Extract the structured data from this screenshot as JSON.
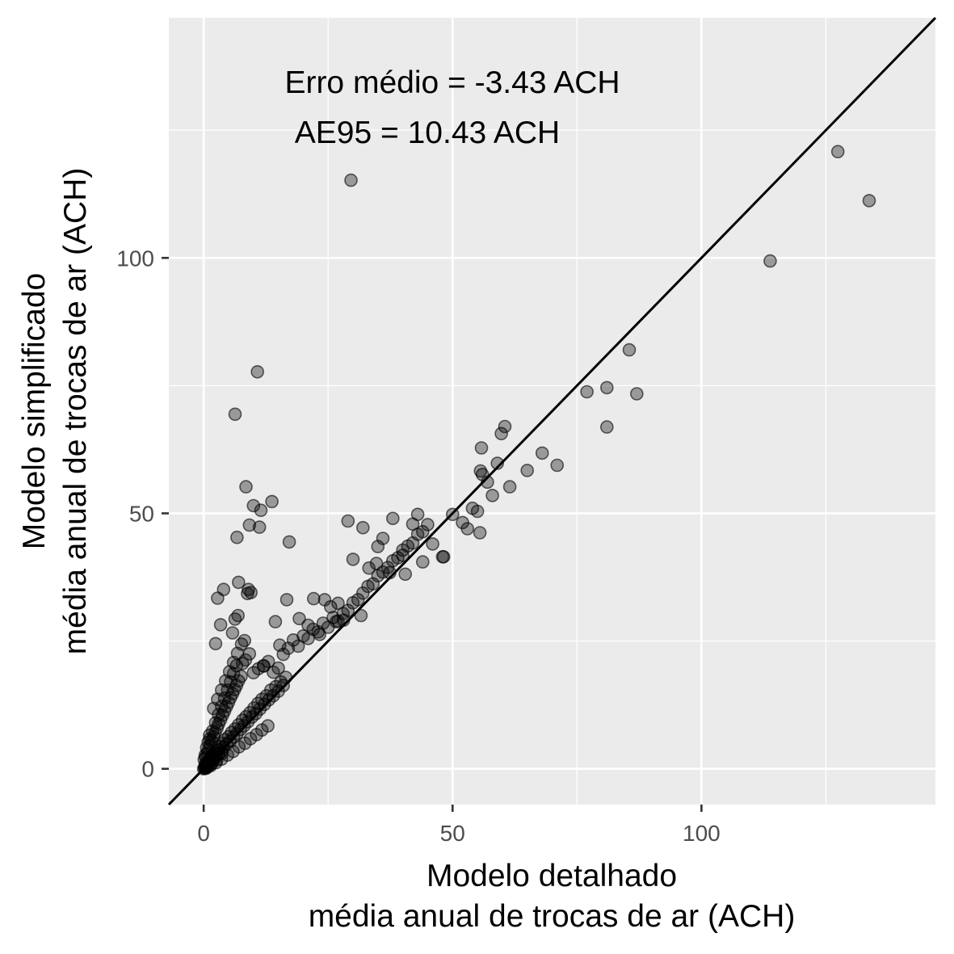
{
  "chart_data": {
    "type": "scatter",
    "title": "",
    "xlabel_lines": [
      "Modelo detalhado",
      "média anual de trocas de ar (ACH)"
    ],
    "ylabel_lines": [
      "Modelo simplificado",
      "média anual de trocas de ar (ACH)"
    ],
    "xlim": [
      -7,
      147
    ],
    "ylim": [
      -7,
      147
    ],
    "x_ticks": [
      0,
      50,
      100
    ],
    "y_ticks": [
      0,
      50,
      100
    ],
    "x_tick_labels": [
      "0",
      "50",
      "100"
    ],
    "y_tick_labels": [
      "0",
      "50",
      "100"
    ],
    "grid": true,
    "legend": "none",
    "reference_line": {
      "type": "identity",
      "slope": 1,
      "intercept": 0
    },
    "annotations": [
      "Erro médio = -3.43 ACH",
      "AE95 = 10.43 ACH"
    ],
    "colors": {
      "panel_background": "#ebebeb",
      "grid_major": "#ffffff",
      "point_fill": "rgba(0,0,0,0.35)",
      "point_stroke": "rgba(0,0,0,0.6)",
      "reference_line": "#000000",
      "tick_label": "#4d4d4d"
    },
    "series": [
      {
        "points": [
          [
            0.2,
            0.3
          ],
          [
            0.3,
            0.8
          ],
          [
            0.5,
            0.4
          ],
          [
            0.6,
            1.2
          ],
          [
            0.8,
            0.9
          ],
          [
            1.0,
            1.5
          ],
          [
            1.1,
            0.7
          ],
          [
            1.3,
            2.0
          ],
          [
            1.5,
            1.4
          ],
          [
            1.7,
            2.6
          ],
          [
            2.0,
            1.8
          ],
          [
            2.2,
            3.1
          ],
          [
            2.4,
            2.3
          ],
          [
            2.7,
            3.6
          ],
          [
            3.0,
            2.9
          ],
          [
            3.2,
            4.4
          ],
          [
            3.5,
            3.3
          ],
          [
            3.8,
            5.0
          ],
          [
            4.0,
            4.2
          ],
          [
            4.3,
            5.7
          ],
          [
            4.6,
            4.8
          ],
          [
            5.0,
            6.3
          ],
          [
            5.3,
            5.4
          ],
          [
            5.6,
            7.1
          ],
          [
            6.0,
            6.2
          ],
          [
            6.3,
            7.8
          ],
          [
            6.7,
            6.9
          ],
          [
            7.0,
            8.6
          ],
          [
            7.4,
            7.7
          ],
          [
            7.8,
            9.5
          ],
          [
            8.1,
            8.4
          ],
          [
            8.5,
            10.2
          ],
          [
            8.9,
            9.2
          ],
          [
            9.3,
            11.0
          ],
          [
            9.7,
            10.1
          ],
          [
            10.1,
            11.9
          ],
          [
            10.5,
            10.8
          ],
          [
            10.9,
            12.8
          ],
          [
            11.3,
            11.7
          ],
          [
            11.7,
            13.6
          ],
          [
            12.2,
            12.6
          ],
          [
            12.6,
            14.3
          ],
          [
            13.1,
            13.5
          ],
          [
            13.5,
            15.4
          ],
          [
            14.0,
            14.3
          ],
          [
            14.5,
            16.1
          ],
          [
            15.0,
            15.2
          ],
          [
            15.5,
            17.0
          ],
          [
            16.0,
            16.3
          ],
          [
            16.5,
            17.9
          ],
          [
            0.4,
            2.2
          ],
          [
            0.7,
            3.0
          ],
          [
            1.0,
            3.8
          ],
          [
            1.3,
            4.6
          ],
          [
            1.6,
            5.5
          ],
          [
            2.0,
            6.3
          ],
          [
            2.3,
            7.1
          ],
          [
            2.7,
            8.0
          ],
          [
            3.0,
            8.8
          ],
          [
            3.4,
            9.6
          ],
          [
            3.8,
            10.5
          ],
          [
            4.2,
            11.3
          ],
          [
            4.6,
            12.2
          ],
          [
            5.0,
            13.0
          ],
          [
            5.4,
            13.9
          ],
          [
            5.8,
            14.7
          ],
          [
            6.2,
            15.5
          ],
          [
            6.6,
            16.3
          ],
          [
            7.0,
            17.2
          ],
          [
            7.5,
            18.1
          ],
          [
            1.2,
            5.8
          ],
          [
            1.8,
            7.4
          ],
          [
            2.4,
            9.0
          ],
          [
            3.0,
            10.6
          ],
          [
            3.6,
            12.2
          ],
          [
            4.2,
            13.8
          ],
          [
            4.8,
            15.4
          ],
          [
            5.4,
            17.0
          ],
          [
            6.0,
            18.6
          ],
          [
            6.6,
            20.2
          ],
          [
            2.0,
            11.8
          ],
          [
            2.8,
            13.6
          ],
          [
            3.6,
            15.4
          ],
          [
            4.4,
            17.2
          ],
          [
            5.2,
            19.0
          ],
          [
            6.0,
            20.8
          ],
          [
            6.8,
            22.6
          ],
          [
            7.6,
            24.4
          ],
          [
            8.4,
            21.3
          ],
          [
            9.2,
            22.5
          ],
          [
            10.0,
            18.8
          ],
          [
            11.0,
            19.6
          ],
          [
            12.0,
            20.2
          ],
          [
            13.0,
            21.0
          ],
          [
            14.0,
            18.9
          ],
          [
            15.0,
            19.7
          ],
          [
            16.0,
            22.4
          ],
          [
            17.0,
            23.6
          ],
          [
            18.0,
            25.2
          ],
          [
            19.0,
            24.0
          ],
          [
            20.0,
            26.0
          ],
          [
            21.0,
            25.5
          ],
          [
            22.0,
            27.3
          ],
          [
            23.0,
            26.8
          ],
          [
            24.0,
            28.5
          ],
          [
            25.0,
            27.7
          ],
          [
            26.0,
            29.6
          ],
          [
            27.0,
            28.9
          ],
          [
            28.0,
            30.4
          ],
          [
            29.0,
            31.0
          ],
          [
            30.0,
            32.5
          ],
          [
            31.0,
            33.1
          ],
          [
            32.0,
            34.4
          ],
          [
            33.0,
            35.7
          ],
          [
            34.0,
            36.2
          ],
          [
            35.0,
            37.8
          ],
          [
            36.0,
            38.5
          ],
          [
            37.0,
            39.4
          ],
          [
            38.0,
            40.7
          ],
          [
            39.0,
            41.3
          ],
          [
            40.0,
            42.8
          ],
          [
            41.0,
            43.6
          ],
          [
            42.0,
            44.2
          ],
          [
            43.0,
            45.9
          ],
          [
            44.0,
            46.4
          ],
          [
            45.0,
            47.8
          ],
          [
            29.0,
            48.5
          ],
          [
            32.0,
            47.2
          ],
          [
            30.0,
            41.0
          ],
          [
            35.0,
            43.5
          ],
          [
            36.0,
            45.1
          ],
          [
            38.0,
            49.0
          ],
          [
            40.0,
            41.8
          ],
          [
            42.0,
            47.9
          ],
          [
            43.0,
            49.8
          ],
          [
            46.0,
            44.0
          ],
          [
            48.0,
            41.5
          ],
          [
            50.0,
            49.8
          ],
          [
            52.0,
            48.2
          ],
          [
            53.0,
            47.0
          ],
          [
            54.0,
            51.0
          ],
          [
            55.0,
            50.4
          ],
          [
            55.5,
            46.2
          ],
          [
            56.0,
            57.6
          ],
          [
            57.0,
            56.1
          ],
          [
            58.0,
            53.5
          ],
          [
            59.0,
            59.8
          ],
          [
            59.8,
            65.6
          ],
          [
            60.5,
            67.0
          ],
          [
            61.5,
            55.2
          ],
          [
            55.6,
            58.3
          ],
          [
            55.8,
            62.8
          ],
          [
            65.0,
            58.4
          ],
          [
            68.0,
            61.8
          ],
          [
            71.0,
            59.4
          ],
          [
            77.0,
            73.8
          ],
          [
            81.0,
            74.6
          ],
          [
            81.0,
            66.9
          ],
          [
            85.5,
            82.0
          ],
          [
            87.0,
            73.4
          ],
          [
            113.8,
            99.4
          ],
          [
            127.4,
            120.8
          ],
          [
            133.7,
            111.2
          ],
          [
            29.6,
            115.2
          ],
          [
            6.3,
            69.4
          ],
          [
            10.8,
            77.7
          ],
          [
            8.5,
            55.2
          ],
          [
            10.0,
            51.5
          ],
          [
            11.5,
            50.6
          ],
          [
            13.7,
            52.3
          ],
          [
            9.2,
            47.7
          ],
          [
            11.2,
            47.3
          ],
          [
            17.2,
            44.4
          ],
          [
            6.7,
            45.3
          ],
          [
            7.0,
            36.5
          ],
          [
            9.0,
            35.1
          ],
          [
            8.8,
            34.3
          ],
          [
            9.5,
            34.5
          ],
          [
            2.8,
            33.4
          ],
          [
            4.0,
            35.1
          ],
          [
            6.3,
            29.3
          ],
          [
            6.9,
            30.0
          ],
          [
            5.8,
            26.6
          ],
          [
            3.4,
            28.2
          ],
          [
            2.4,
            24.5
          ],
          [
            8.2,
            25.1
          ],
          [
            7.8,
            20.6
          ],
          [
            12.1,
            20.1
          ],
          [
            16.7,
            33.1
          ],
          [
            22.1,
            33.3
          ],
          [
            24.3,
            33.1
          ],
          [
            27.0,
            32.4
          ],
          [
            14.4,
            28.8
          ],
          [
            15.3,
            24.2
          ],
          [
            19.2,
            29.4
          ],
          [
            21.0,
            28.1
          ],
          [
            23.3,
            26.3
          ],
          [
            25.5,
            31.7
          ],
          [
            26.6,
            28.8
          ],
          [
            28.1,
            29.1
          ],
          [
            31.6,
            30.0
          ],
          [
            33.2,
            39.3
          ],
          [
            34.7,
            40.2
          ],
          [
            37.4,
            38.4
          ],
          [
            40.5,
            38.1
          ],
          [
            44.0,
            40.5
          ],
          [
            48.2,
            41.5
          ],
          [
            0.5,
            0.1
          ],
          [
            1.4,
            0.6
          ],
          [
            2.5,
            1.2
          ],
          [
            3.6,
            1.9
          ],
          [
            4.8,
            2.7
          ],
          [
            5.9,
            3.4
          ],
          [
            7.1,
            4.3
          ],
          [
            8.3,
            5.0
          ],
          [
            9.4,
            5.9
          ],
          [
            10.6,
            6.7
          ],
          [
            11.7,
            7.6
          ],
          [
            12.9,
            8.4
          ],
          [
            0.1,
            1.8
          ],
          [
            0.3,
            2.7
          ],
          [
            0.6,
            4.1
          ],
          [
            0.9,
            5.2
          ],
          [
            1.2,
            6.6
          ],
          [
            0.0,
            0.0
          ],
          [
            0.2,
            0.1
          ],
          [
            0.4,
            0.6
          ],
          [
            0.7,
            0.3
          ],
          [
            0.9,
            1.1
          ],
          [
            1.6,
            1.0
          ],
          [
            1.9,
            2.2
          ],
          [
            2.6,
            1.7
          ],
          [
            3.1,
            3.8
          ],
          [
            3.7,
            3.0
          ]
        ]
      }
    ]
  }
}
